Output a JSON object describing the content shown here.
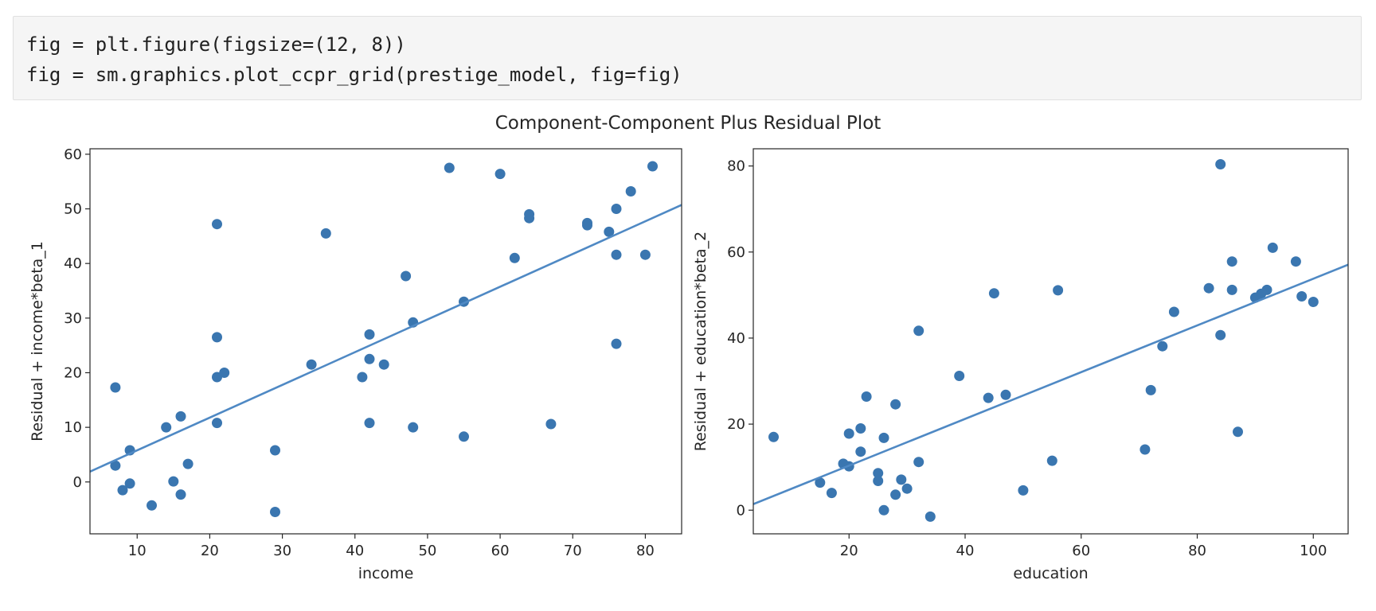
{
  "code_cell": {
    "lines": [
      "fig = plt.figure(figsize=(12, 8))",
      "fig = sm.graphics.plot_ccpr_grid(prestige_model, fig=fig)"
    ]
  },
  "chart_data": {
    "title": "Component-Component Plus Residual Plot",
    "colors": {
      "points": "#3a76b0",
      "line": "#4f89c4",
      "axes": "#262626"
    },
    "panels": [
      {
        "type": "scatter",
        "xlabel": "income",
        "ylabel": "Residual + income*beta_1",
        "xlim": [
          3.5,
          85
        ],
        "ylim": [
          -9.5,
          61
        ],
        "xticks": [
          10,
          20,
          30,
          40,
          50,
          60,
          70,
          80
        ],
        "yticks": [
          0,
          10,
          20,
          30,
          40,
          50,
          60
        ],
        "fit_line": {
          "slope": 0.599,
          "intercept": -0.2
        },
        "points": [
          [
            7,
            17.3
          ],
          [
            7,
            3
          ],
          [
            8,
            -1.5
          ],
          [
            9,
            -0.3
          ],
          [
            9,
            5.8
          ],
          [
            12,
            -4.3
          ],
          [
            14,
            10
          ],
          [
            15,
            0.1
          ],
          [
            16,
            12
          ],
          [
            16,
            -2.3
          ],
          [
            17,
            3.3
          ],
          [
            21,
            47.2
          ],
          [
            21,
            26.5
          ],
          [
            21,
            19.2
          ],
          [
            22,
            20
          ],
          [
            21,
            10.8
          ],
          [
            29,
            5.8
          ],
          [
            29,
            -5.5
          ],
          [
            34,
            21.5
          ],
          [
            36,
            45.5
          ],
          [
            41,
            19.2
          ],
          [
            42,
            27
          ],
          [
            42,
            22.5
          ],
          [
            44,
            21.5
          ],
          [
            42,
            10.8
          ],
          [
            47,
            37.7
          ],
          [
            48,
            29.2
          ],
          [
            48,
            10
          ],
          [
            53,
            57.5
          ],
          [
            55,
            33
          ],
          [
            55,
            8.3
          ],
          [
            60,
            56.4
          ],
          [
            62,
            41
          ],
          [
            64,
            49
          ],
          [
            64,
            48.3
          ],
          [
            67,
            10.6
          ],
          [
            72,
            47.4
          ],
          [
            72,
            47
          ],
          [
            75,
            45.8
          ],
          [
            76,
            50
          ],
          [
            76,
            41.6
          ],
          [
            76,
            25.3
          ],
          [
            78,
            53.2
          ],
          [
            80,
            41.6
          ],
          [
            81,
            57.8
          ]
        ]
      },
      {
        "type": "scatter",
        "xlabel": "education",
        "ylabel": "Residual + education*beta_2",
        "xlim": [
          3.5,
          106
        ],
        "ylim": [
          -5.5,
          84
        ],
        "xticks": [
          20,
          40,
          60,
          80,
          100
        ],
        "yticks": [
          0,
          20,
          40,
          60,
          80
        ],
        "fit_line": {
          "slope": 0.543,
          "intercept": -0.5
        },
        "points": [
          [
            7,
            17
          ],
          [
            15,
            6.4
          ],
          [
            17,
            4
          ],
          [
            19,
            10.8
          ],
          [
            20,
            10.2
          ],
          [
            20,
            17.8
          ],
          [
            22,
            19
          ],
          [
            22,
            13.6
          ],
          [
            23,
            26.4
          ],
          [
            25,
            8.6
          ],
          [
            25,
            6.8
          ],
          [
            26,
            16.8
          ],
          [
            26,
            0
          ],
          [
            28,
            3.6
          ],
          [
            28,
            24.6
          ],
          [
            29,
            7.1
          ],
          [
            30,
            5
          ],
          [
            32,
            41.7
          ],
          [
            32,
            11.2
          ],
          [
            34,
            -1.5
          ],
          [
            39,
            31.2
          ],
          [
            44,
            26.1
          ],
          [
            45,
            50.4
          ],
          [
            47,
            26.8
          ],
          [
            50,
            4.6
          ],
          [
            55,
            11.5
          ],
          [
            56,
            51.1
          ],
          [
            71,
            14.1
          ],
          [
            72,
            27.9
          ],
          [
            74,
            38.1
          ],
          [
            76,
            46.1
          ],
          [
            82,
            51.6
          ],
          [
            84,
            80.4
          ],
          [
            84,
            40.7
          ],
          [
            86,
            57.8
          ],
          [
            86,
            51.2
          ],
          [
            87,
            18.2
          ],
          [
            90,
            49.4
          ],
          [
            91,
            50.3
          ],
          [
            92,
            51.2
          ],
          [
            93,
            61
          ],
          [
            97,
            57.8
          ],
          [
            98,
            49.7
          ],
          [
            100,
            48.4
          ]
        ]
      }
    ]
  }
}
